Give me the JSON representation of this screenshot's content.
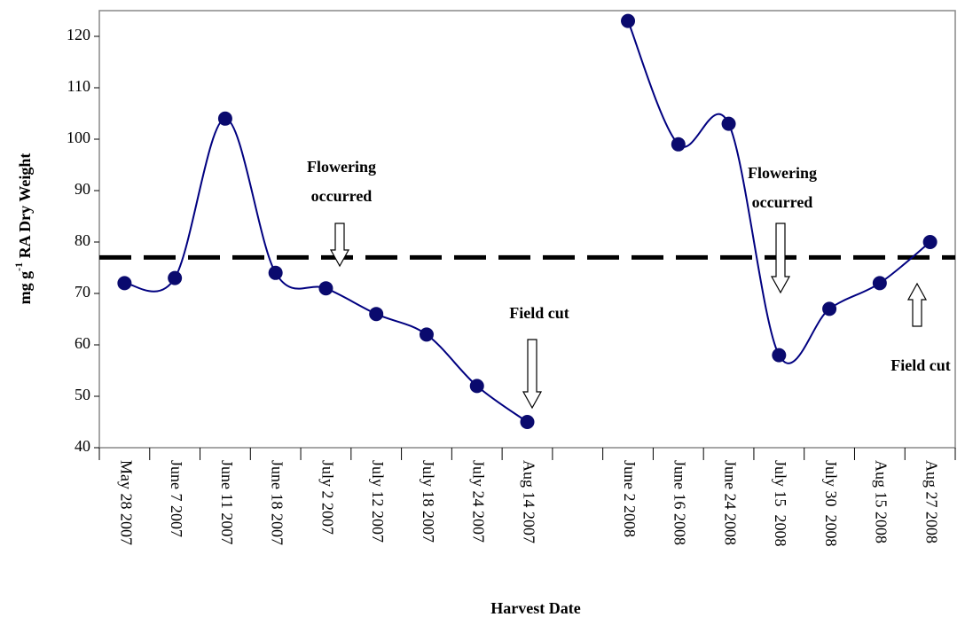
{
  "chart_data": {
    "type": "line",
    "y_label_parts": [
      "mg g",
      "-1",
      " RA Dry Weight"
    ],
    "x_label": "Harvest Date",
    "categories": [
      "May 28 2007",
      "June 7 2007",
      "June 11 2007",
      "June 18 2007",
      "July 2 2007",
      "July 12 2007",
      "July 18 2007",
      "July 24 2007",
      "Aug 14 2007",
      null,
      "June 2 2008",
      "June 16 2008",
      "June 24 2008",
      "July 15  2008",
      "July 30  2008",
      "Aug 15 2008",
      "Aug 27 2008"
    ],
    "values": [
      72,
      73,
      104,
      74,
      71,
      66,
      62,
      52,
      45,
      null,
      123,
      99,
      103,
      58,
      67,
      72,
      80
    ],
    "color": "#000080",
    "marker_color": "#0a0a6e",
    "reference_line": 77,
    "ylim": [
      40,
      125
    ],
    "yticks": [
      40,
      50,
      60,
      70,
      80,
      90,
      100,
      110,
      120
    ],
    "annotations": [
      {
        "lines": [
          "Flowering",
          "occurred"
        ],
        "arrow": "down"
      },
      {
        "lines": [
          "Field cut"
        ],
        "arrow": "down"
      },
      {
        "lines": [
          "Flowering",
          "occurred"
        ],
        "arrow": "down"
      },
      {
        "lines": [
          "Field cut"
        ],
        "arrow": "up"
      }
    ]
  }
}
